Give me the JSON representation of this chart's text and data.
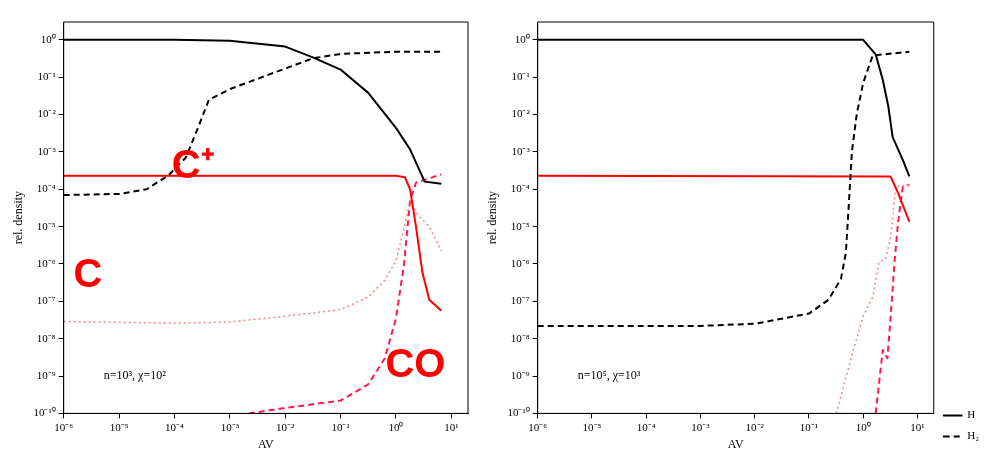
{
  "chart_data": [
    {
      "type": "line",
      "xlabel": "AV",
      "ylabel": "rel. density",
      "log": "xy",
      "grid": false,
      "legend": false,
      "marker": "none",
      "xlim": [
        1e-06,
        20
      ],
      "ylim": [
        1e-10,
        3
      ],
      "xticks": [
        {
          "value": 1e-06,
          "label": "10⁻⁶"
        },
        {
          "value": 1e-05,
          "label": "10⁻⁵"
        },
        {
          "value": 0.0001,
          "label": "10⁻⁴"
        },
        {
          "value": 0.001,
          "label": "10⁻³"
        },
        {
          "value": 0.01,
          "label": "10⁻²"
        },
        {
          "value": 0.1,
          "label": "10⁻¹"
        },
        {
          "value": 1,
          "label": "10⁰"
        },
        {
          "value": 10,
          "label": "10¹"
        }
      ],
      "yticks": [
        {
          "value": 1e-10,
          "label": "10⁻¹⁰"
        },
        {
          "value": 1e-09,
          "label": "10⁻⁹"
        },
        {
          "value": 1e-08,
          "label": "10⁻⁸"
        },
        {
          "value": 1e-07,
          "label": "10⁻⁷"
        },
        {
          "value": 1e-06,
          "label": "10⁻⁶"
        },
        {
          "value": 1e-05,
          "label": "10⁻⁵"
        },
        {
          "value": 0.0001,
          "label": "10⁻⁴"
        },
        {
          "value": 0.001,
          "label": "10⁻³"
        },
        {
          "value": 0.01,
          "label": "10⁻²"
        },
        {
          "value": 0.1,
          "label": "10⁻¹"
        },
        {
          "value": 1,
          "label": "10⁰"
        }
      ],
      "annotations": [
        "n=10³, χ=10²"
      ],
      "series": [
        {
          "color": "#000000",
          "line_style": "solid",
          "x": [
            1e-06,
            0.0001,
            0.001,
            0.01,
            0.0316,
            0.1,
            0.316,
            1,
            1.78,
            2.2,
            3.3,
            6.6
          ],
          "values": [
            1,
            1,
            0.95,
            0.66,
            0.34,
            0.16,
            0.038,
            0.0044,
            0.0012,
            0.0006,
            0.00016,
            0.00014
          ]
        },
        {
          "color": "#000000",
          "line_style": "dashed",
          "x": [
            1e-06,
            1e-05,
            3.16e-05,
            7.9e-05,
            0.00016,
            0.000275,
            0.00042,
            0.001,
            0.01,
            0.0316,
            0.1,
            1,
            6.6
          ],
          "values": [
            7e-05,
            7.5e-05,
            0.0001,
            0.00024,
            0.0007,
            0.005,
            0.025,
            0.048,
            0.17,
            0.32,
            0.42,
            0.48,
            0.48
          ]
        },
        {
          "name": "C⁺",
          "color": "#ff0000",
          "line_style": "solid",
          "x": [
            1e-06,
            1,
            1.45,
            1.8,
            2.3,
            3,
            4,
            6.6
          ],
          "values": [
            0.00023,
            0.00023,
            0.00021,
            0.0001,
            1e-05,
            6e-07,
            1.1e-07,
            5.6e-08
          ]
        },
        {
          "name": "C",
          "color": "#ff8080",
          "line_style": "dotted",
          "x": [
            1e-06,
            0.0001,
            0.001,
            0.01,
            0.1,
            0.316,
            0.63,
            1,
            1.4,
            1.8,
            2.5,
            4,
            6.6
          ],
          "values": [
            2.9e-08,
            2.6e-08,
            2.8e-08,
            4e-08,
            6e-08,
            1.3e-07,
            3.7e-07,
            1.2e-06,
            9e-06,
            5e-05,
            2e-05,
            1e-05,
            2.2e-06
          ]
        },
        {
          "name": "CO",
          "color": "#ff1a4a",
          "line_style": "dashed",
          "x": [
            0.0022,
            0.01,
            0.1,
            0.316,
            0.63,
            1,
            1.4,
            1.8,
            2.3,
            6.6
          ],
          "values": [
            1e-10,
            1.4e-10,
            2.2e-10,
            6e-10,
            3e-09,
            3.5e-08,
            1e-06,
            5e-05,
            0.00015,
            0.00025
          ]
        }
      ]
    },
    {
      "type": "line",
      "xlabel": "AV",
      "ylabel": "rel. density",
      "log": "xy",
      "grid": false,
      "legend": "bottom right",
      "marker": "none",
      "xlim": [
        1e-06,
        20
      ],
      "ylim": [
        1e-10,
        3
      ],
      "xticks": [
        {
          "value": 1e-06,
          "label": "10⁻⁶"
        },
        {
          "value": 1e-05,
          "label": "10⁻⁵"
        },
        {
          "value": 0.0001,
          "label": "10⁻⁴"
        },
        {
          "value": 0.001,
          "label": "10⁻³"
        },
        {
          "value": 0.01,
          "label": "10⁻²"
        },
        {
          "value": 0.1,
          "label": "10⁻¹"
        },
        {
          "value": 1,
          "label": "10⁰"
        },
        {
          "value": 10,
          "label": "10¹"
        }
      ],
      "yticks": [
        {
          "value": 1e-10,
          "label": "10⁻¹⁰"
        },
        {
          "value": 1e-09,
          "label": "10⁻⁹"
        },
        {
          "value": 1e-08,
          "label": "10⁻⁸"
        },
        {
          "value": 1e-07,
          "label": "10⁻⁷"
        },
        {
          "value": 1e-06,
          "label": "10⁻⁶"
        },
        {
          "value": 1e-05,
          "label": "10⁻⁵"
        },
        {
          "value": 0.0001,
          "label": "10⁻⁴"
        },
        {
          "value": 0.001,
          "label": "10⁻³"
        },
        {
          "value": 0.01,
          "label": "10⁻²"
        },
        {
          "value": 0.1,
          "label": "10⁻¹"
        },
        {
          "value": 1,
          "label": "10⁰"
        }
      ],
      "annotations": [
        "n=10⁵, χ=10³"
      ],
      "series": [
        {
          "name": "H",
          "color": "#000000",
          "line_style": "solid",
          "x": [
            1e-06,
            1,
            1.7,
            2.3,
            2.9,
            3.5,
            5.4,
            7.1
          ],
          "values": [
            1,
            1,
            0.41,
            0.085,
            0.017,
            0.0025,
            0.0006,
            0.00022
          ]
        },
        {
          "name": "H₂",
          "color": "#000000",
          "line_style": "dashed",
          "x": [
            1e-06,
            0.001,
            0.01,
            0.1,
            0.23,
            0.39,
            0.48,
            0.52,
            0.62,
            0.76,
            1,
            1.5,
            7.1
          ],
          "values": [
            2.2e-08,
            2.2e-08,
            2.5e-08,
            4.7e-08,
            1.1e-07,
            4e-07,
            2e-06,
            1.3e-05,
            0.001,
            0.01,
            0.07,
            0.38,
            0.48
          ]
        },
        {
          "color": "#ff0000",
          "line_style": "solid",
          "x": [
            1e-06,
            3.2,
            4.4,
            7.1
          ],
          "values": [
            0.00023,
            0.00022,
            8e-05,
            1.35e-05
          ]
        },
        {
          "color": "#ff8080",
          "line_style": "dotted",
          "x": [
            0.32,
            0.66,
            1,
            1.5,
            1.95,
            2.6,
            3.2,
            4,
            7.1
          ],
          "values": [
            1e-10,
            5e-09,
            4e-08,
            1.3e-07,
            1.1e-06,
            1.4e-06,
            5e-06,
            0.00012,
            0.00013
          ]
        },
        {
          "color": "#ff1a4a",
          "line_style": "dashed",
          "x": [
            1.7,
            2.3,
            2.8,
            3.2,
            3.8,
            4.4,
            5.4,
            7.1
          ],
          "values": [
            1e-10,
            5e-09,
            3e-09,
            3.5e-08,
            1.2e-06,
            1.3e-05,
            0.00012,
            0.00013
          ]
        }
      ]
    }
  ]
}
